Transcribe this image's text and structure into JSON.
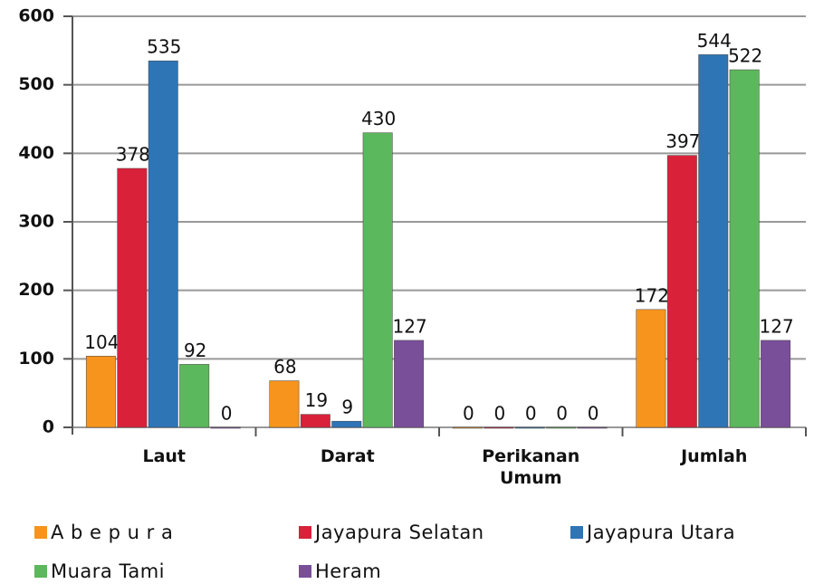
{
  "chart_data": {
    "type": "bar",
    "categories": [
      "Laut",
      "Darat",
      "Perikanan Umum",
      "Jumlah"
    ],
    "series": [
      {
        "name": "A b e p u r a",
        "color": "#f7941d",
        "values": [
          104,
          68,
          0,
          172
        ]
      },
      {
        "name": "Jayapura Selatan",
        "color": "#d9213a",
        "values": [
          378,
          19,
          0,
          397
        ]
      },
      {
        "name": "Jayapura Utara",
        "color": "#2e75b6",
        "values": [
          535,
          9,
          0,
          544
        ]
      },
      {
        "name": "Muara Tami",
        "color": "#5cb85c",
        "values": [
          92,
          430,
          0,
          522
        ]
      },
      {
        "name": "Heram",
        "color": "#7a4f9a",
        "values": [
          0,
          127,
          0,
          127
        ]
      }
    ],
    "ylim": [
      0,
      600
    ],
    "yticks": [
      0,
      100,
      200,
      300,
      400,
      500,
      600
    ],
    "grid": true
  }
}
